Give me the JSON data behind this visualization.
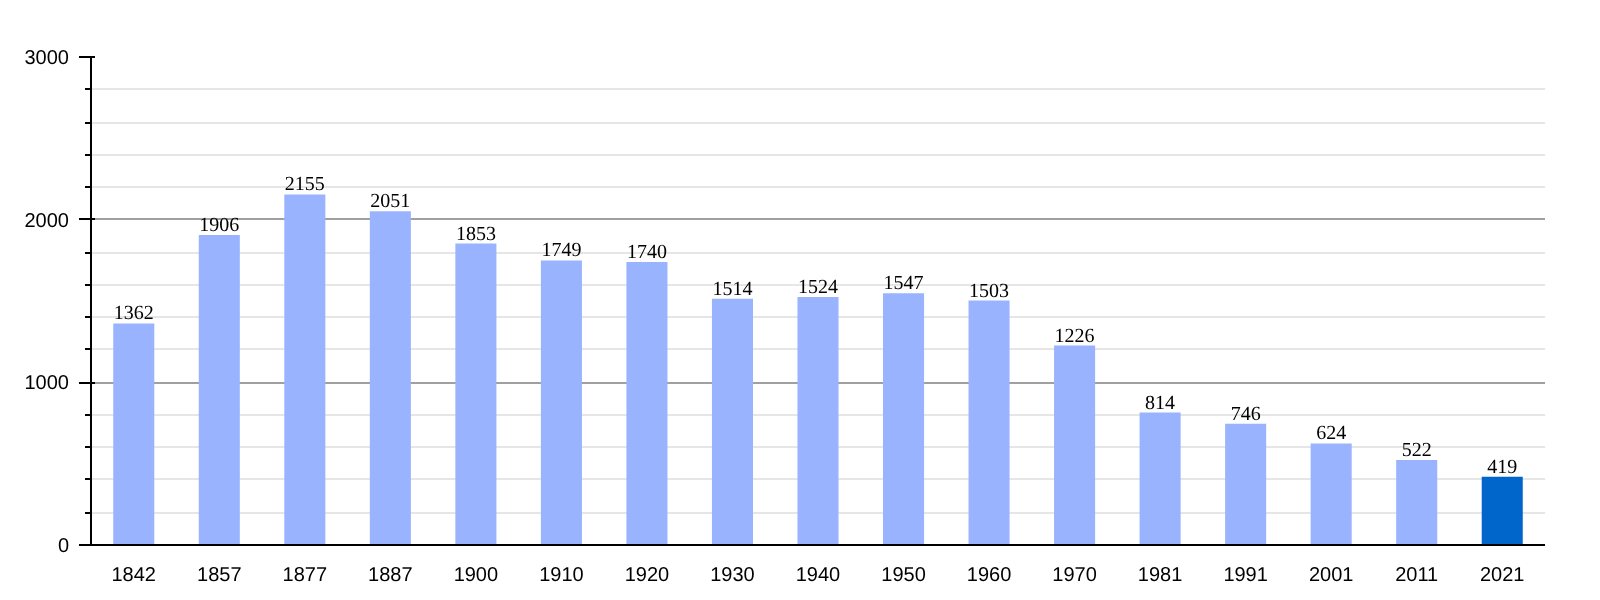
{
  "chart_data": {
    "type": "bar",
    "categories": [
      "1842",
      "1857",
      "1877",
      "1887",
      "1900",
      "1910",
      "1920",
      "1930",
      "1940",
      "1950",
      "1960",
      "1970",
      "1981",
      "1991",
      "2001",
      "2011",
      "2021"
    ],
    "values": [
      1362,
      1906,
      2155,
      2051,
      1853,
      1749,
      1740,
      1514,
      1524,
      1547,
      1503,
      1226,
      814,
      746,
      624,
      522,
      419
    ],
    "colors": [
      "#99b3ff",
      "#99b3ff",
      "#99b3ff",
      "#99b3ff",
      "#99b3ff",
      "#99b3ff",
      "#99b3ff",
      "#99b3ff",
      "#99b3ff",
      "#99b3ff",
      "#99b3ff",
      "#99b3ff",
      "#99b3ff",
      "#99b3ff",
      "#99b3ff",
      "#99b3ff",
      "#0066cc"
    ],
    "ylim": [
      0,
      3000
    ],
    "yticks": [
      0,
      1000,
      2000,
      3000
    ],
    "grid": "y",
    "data_labels": true
  }
}
